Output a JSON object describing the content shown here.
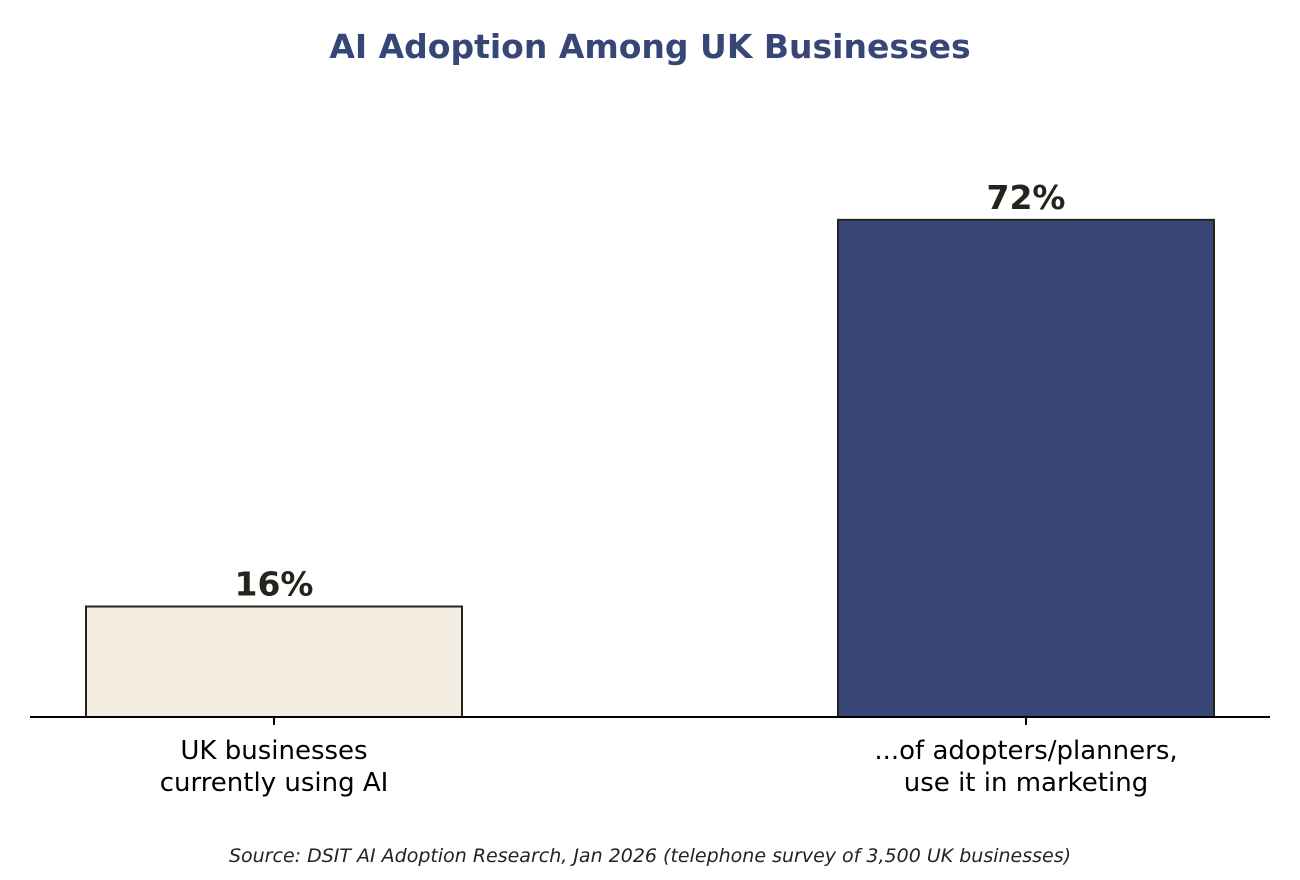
{
  "colors": {
    "title": "#364677",
    "text": "#26231c",
    "axis": "#000000",
    "bar_edge": "#26231c",
    "bar_1": "#f2ede0",
    "bar_2": "#374677"
  },
  "chart_data": {
    "type": "bar",
    "title": "AI Adoption Among UK Businesses",
    "xlabel": "",
    "ylabel": "",
    "ylim": [
      0,
      80
    ],
    "grid": false,
    "categories": [
      [
        "UK businesses",
        "currently using AI"
      ],
      [
        "...of adopters/planners,",
        "use it in marketing"
      ]
    ],
    "values": [
      16,
      72
    ],
    "value_labels": [
      "16%",
      "72%"
    ]
  },
  "source": "Source: DSIT AI Adoption Research, Jan 2026 (telephone survey of 3,500 UK businesses)"
}
